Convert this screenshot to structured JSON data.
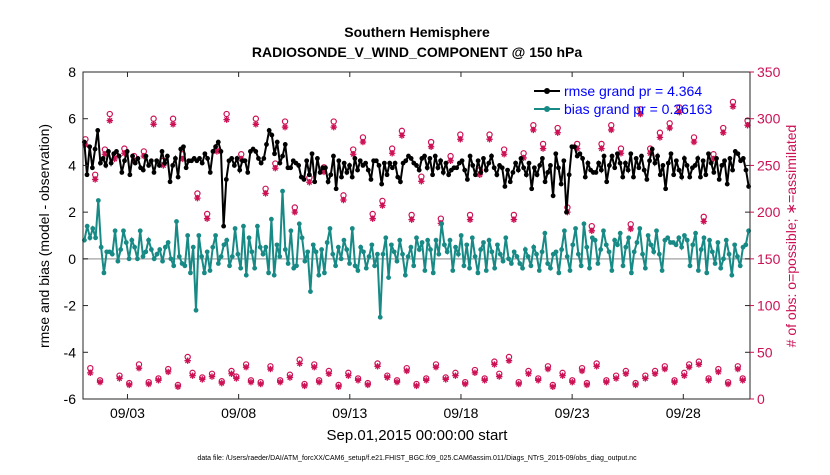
{
  "chart_data": {
    "type": "line",
    "title": "Southern Hemisphere",
    "subtitle": "RADIOSONDE_V_WIND_COMPONENT @ 150 hPa",
    "xlabel": "Sep.01,2015 00:00:00 start",
    "ylabel": "rmse and bias (model - observation)",
    "y2label": "# of obs: o=possible; ∗=assimilated",
    "footnote": "data file: /Users/raeder/DAI/ATM_forcXX/CAM6_setup/f.e21.FHIST_BGC.f09_025.CAM6assim.011/Diags_NTrS_2015-09/obs_diag_output.nc",
    "x_range": [
      0,
      60
    ],
    "ylim": [
      -6,
      8
    ],
    "y2lim": [
      0,
      350
    ],
    "x_ticks": [
      4,
      14,
      24,
      34,
      44,
      54
    ],
    "x_tick_labels": [
      "09/03",
      "09/08",
      "09/13",
      "09/18",
      "09/23",
      "09/28"
    ],
    "y_ticks": [
      -6,
      -4,
      -2,
      0,
      2,
      4,
      6,
      8
    ],
    "y_tick_labels": [
      "-6",
      "-4",
      "-2",
      "0",
      "2",
      "4",
      "6",
      "8"
    ],
    "y2_ticks": [
      0,
      50,
      100,
      150,
      200,
      250,
      300,
      350
    ],
    "y2_tick_labels": [
      "0",
      "50",
      "100",
      "150",
      "200",
      "250",
      "300",
      "350"
    ],
    "legend": {
      "position": "top-right",
      "entries": [
        "rmse grand pr = 4.364",
        "bias grand pr = 0.26163"
      ]
    },
    "colors": {
      "rmse": "#000000",
      "bias": "#178a86",
      "obs": "#cc1155",
      "zero": "#b0b0b0",
      "legend_text": "#0000ff"
    },
    "series": [
      {
        "name": "rmse",
        "values": [
          5.0,
          3.6,
          4.8,
          3.9,
          4.7,
          5.5,
          4.1,
          4.3,
          4.0,
          4.6,
          4.1,
          4.5,
          4.6,
          4.4,
          3.7,
          4.2,
          4.6,
          3.6,
          4.4,
          4.1,
          4.3,
          3.9,
          3.8,
          4.4,
          4.0,
          4.2,
          3.7,
          4.2,
          4.0,
          4.6,
          4.1,
          4.4,
          3.3,
          4.0,
          4.3,
          3.5,
          4.7,
          4.8,
          3.9,
          4.2,
          4.2,
          4.3,
          4.2,
          4.3,
          4.1,
          4.5,
          4.3,
          3.7,
          4.6,
          4.8,
          5.0,
          4.6,
          1.4,
          3.4,
          4.2,
          4.3,
          4.0,
          4.3,
          3.8,
          4.2,
          4.2,
          3.7,
          4.6,
          4.7,
          4.6,
          4.3,
          4.1,
          4.3,
          4.9,
          5.5,
          5.3,
          4.5,
          5.0,
          4.1,
          4.4,
          4.9,
          3.9,
          3.9,
          4.2,
          4.1,
          4.0,
          3.5,
          3.4,
          4.2,
          3.6,
          4.5,
          3.3,
          4.3,
          3.7,
          3.9,
          3.9,
          3.3,
          3.6,
          4.4,
          3.0,
          4.2,
          3.5,
          4.1,
          3.7,
          4.0,
          3.5,
          4.3,
          3.8,
          4.2,
          4.0,
          4.1,
          3.8,
          3.4,
          4.2,
          4.2,
          4.0,
          3.2,
          4.1,
          3.6,
          4.1,
          3.9,
          4.1,
          3.5,
          3.3,
          4.1,
          4.2,
          4.4,
          4.3,
          4.1,
          4.0,
          3.8,
          4.3,
          4.4,
          3.9,
          4.3,
          3.6,
          4.4,
          3.9,
          4.2,
          3.7,
          4.1,
          3.6,
          3.8,
          3.9,
          3.9,
          4.1,
          4.2,
          3.8,
          3.4,
          4.4,
          4.0,
          3.6,
          4.2,
          3.7,
          4.3,
          3.8,
          4.1,
          4.4,
          3.9,
          3.6,
          4.0,
          3.9,
          3.1,
          3.8,
          3.3,
          3.7,
          4.1,
          3.8,
          4.3,
          3.9,
          3.6,
          4.1,
          3.0,
          3.9,
          3.6,
          4.0,
          4.3,
          3.3,
          3.7,
          4.0,
          2.7,
          4.5,
          3.9,
          3.2,
          4.2,
          2.0,
          3.6,
          4.8,
          4.8,
          4.4,
          4.5,
          4.3,
          3.5,
          4.1,
          3.8,
          3.7,
          3.7,
          4.1,
          3.8,
          4.4,
          3.3,
          4.0,
          4.4,
          3.9,
          4.5,
          4.1,
          3.5,
          4.1,
          3.8,
          4.5,
          3.5,
          4.3,
          3.9,
          4.4,
          3.8,
          3.4,
          4.2,
          4.7,
          4.1,
          4.4,
          3.6,
          4.0,
          3.0,
          4.1,
          4.5,
          3.6,
          4.2,
          3.8,
          3.5,
          4.3,
          4.0,
          3.5,
          3.9,
          4.0,
          4.3,
          3.5,
          4.2,
          3.6,
          4.5,
          4.1,
          3.7,
          4.3,
          3.4,
          4.0,
          4.2,
          3.2,
          4.3,
          3.8,
          4.6,
          4.5,
          4.2,
          4.3,
          3.8,
          3.1
        ]
      },
      {
        "name": "bias",
        "values": [
          0.8,
          1.4,
          0.9,
          1.3,
          0.9,
          2.5,
          0.5,
          -0.6,
          0.3,
          0.3,
          0.2,
          1.2,
          -0.1,
          0.4,
          1.2,
          0.7,
          0.0,
          0.8,
          0.5,
          0.0,
          1.2,
          0.1,
          0.3,
          0.8,
          0.4,
          0.0,
          0.2,
          0.4,
          -0.1,
          0.5,
          0.7,
          0.0,
          -0.3,
          1.6,
          0.1,
          -0.2,
          -0.3,
          1.0,
          -0.6,
          0.5,
          -2.2,
          1.0,
          0.1,
          -0.6,
          0.3,
          -0.5,
          0.5,
          1.0,
          -0.2,
          0.1,
          0.6,
          0.8,
          -0.3,
          0.1,
          1.3,
          0.2,
          -0.4,
          1.4,
          -0.7,
          0.9,
          0.3,
          -0.4,
          1.4,
          0.5,
          0.2,
          0.5,
          -0.6,
          1.7,
          -0.7,
          0.6,
          0.1,
          2.9,
          0.4,
          -0.2,
          1.2,
          -0.4,
          -0.3,
          1.5,
          0.9,
          -0.1,
          0.3,
          -1.4,
          0.6,
          0.3,
          -0.7,
          0.4,
          -0.6,
          0.7,
          1.3,
          0.2,
          -0.3,
          0.5,
          0.0,
          0.8,
          0.4,
          -0.2,
          1.3,
          -0.3,
          -0.5,
          0.5,
          0.3,
          -0.4,
          0.1,
          0.6,
          -0.3,
          0.2,
          -2.5,
          0.2,
          0.9,
          -0.8,
          0.6,
          0.3,
          -0.1,
          0.8,
          0.2,
          -0.7,
          0.1,
          0.5,
          -0.3,
          0.9,
          0.4,
          0.7,
          -0.5,
          0.8,
          0.4,
          -0.6,
          0.8,
          0.2,
          1.5,
          0.6,
          0.3,
          0.8,
          -0.5,
          0.5,
          0.2,
          1.0,
          -0.3,
          0.6,
          -0.4,
          0.9,
          0.1,
          -0.6,
          0.4,
          0.7,
          -0.5,
          0.8,
          0.3,
          -0.4,
          0.6,
          0.2,
          -0.1,
          0.9,
          0.0,
          -0.2,
          0.3,
          0.1,
          -0.2,
          -0.4,
          0.4,
          0.1,
          -0.3,
          0.5,
          0.2,
          -0.5,
          0.3,
          1.1,
          -0.2,
          -0.4,
          0.2,
          0.3,
          -0.6,
          0.4,
          1.2,
          0.1,
          -0.5,
          0.6,
          1.3,
          0.2,
          -0.3,
          1.5,
          0.5,
          -0.4,
          0.9,
          0.8,
          -0.2,
          0.4,
          1.2,
          0.6,
          0.3,
          -0.5,
          0.8,
          0.6,
          1.1,
          -0.3,
          0.5,
          0.9,
          -0.6,
          0.3,
          0.7,
          1.3,
          0.2,
          -0.4,
          1.0,
          0.6,
          0.3,
          1.2,
          0.2,
          -0.5,
          0.8,
          0.9,
          0.7,
          0.7,
          0.6,
          0.9,
          0.5,
          1.0,
          0.8,
          -0.3,
          0.6,
          1.1,
          -0.5,
          0.4,
          0.9,
          -0.6,
          0.8,
          0.3,
          -0.2,
          0.7,
          -0.4,
          0.0,
          0.8,
          0.2,
          -0.7,
          0.6,
          0.1,
          -0.3,
          0.5,
          0.6,
          1.2
        ]
      },
      {
        "name": "obs_possible",
        "values": [
          278,
          33,
          240,
          20,
          267,
          305,
          262,
          25,
          268,
          17,
          260,
          37,
          265,
          18,
          300,
          22,
          255,
          32,
          300,
          15,
          262,
          45,
          28,
          220,
          23,
          198,
          27,
          270,
          19,
          305,
          30,
          24,
          262,
          37,
          20,
          300,
          18,
          225,
          35,
          252,
          20,
          297,
          26,
          205,
          42,
          16,
          237,
          37,
          20,
          248,
          30,
          297,
          15,
          218,
          28,
          267,
          22,
          280,
          17,
          198,
          38,
          212,
          25,
          268,
          20,
          287,
          33,
          197,
          16,
          238,
          22,
          275,
          37,
          193,
          23,
          260,
          28,
          283,
          18,
          197,
          31,
          245,
          22,
          283,
          40,
          27,
          267,
          45,
          197,
          18,
          263,
          30,
          293,
          22,
          273,
          35,
          15,
          290,
          28,
          205,
          20,
          273,
          33,
          17,
          185,
          38,
          273,
          20,
          293,
          25,
          268,
          30,
          187,
          17,
          310,
          25,
          268,
          30,
          285,
          35,
          295,
          20,
          312,
          28,
          37,
          280,
          40,
          195,
          22,
          262,
          32,
          290,
          18,
          318,
          35,
          22,
          298
        ]
      },
      {
        "name": "obs_assimilated",
        "values": [
          272,
          28,
          235,
          18,
          262,
          298,
          257,
          22,
          263,
          15,
          255,
          33,
          260,
          16,
          294,
          20,
          250,
          29,
          294,
          13,
          257,
          41,
          25,
          215,
          21,
          193,
          24,
          265,
          17,
          299,
          27,
          22,
          257,
          34,
          18,
          294,
          16,
          220,
          32,
          247,
          18,
          291,
          23,
          200,
          38,
          14,
          232,
          34,
          18,
          243,
          27,
          291,
          13,
          213,
          25,
          262,
          20,
          275,
          15,
          193,
          35,
          207,
          23,
          263,
          18,
          282,
          30,
          192,
          14,
          233,
          20,
          270,
          34,
          188,
          21,
          255,
          25,
          278,
          16,
          192,
          28,
          240,
          20,
          278,
          37,
          24,
          262,
          41,
          192,
          16,
          258,
          27,
          288,
          20,
          268,
          32,
          13,
          285,
          25,
          200,
          18,
          268,
          30,
          15,
          180,
          35,
          268,
          18,
          288,
          22,
          263,
          27,
          182,
          15,
          305,
          22,
          263,
          27,
          280,
          32,
          290,
          18,
          307,
          25,
          34,
          275,
          37,
          190,
          20,
          257,
          29,
          285,
          16,
          313,
          32,
          20,
          293
        ]
      }
    ]
  }
}
